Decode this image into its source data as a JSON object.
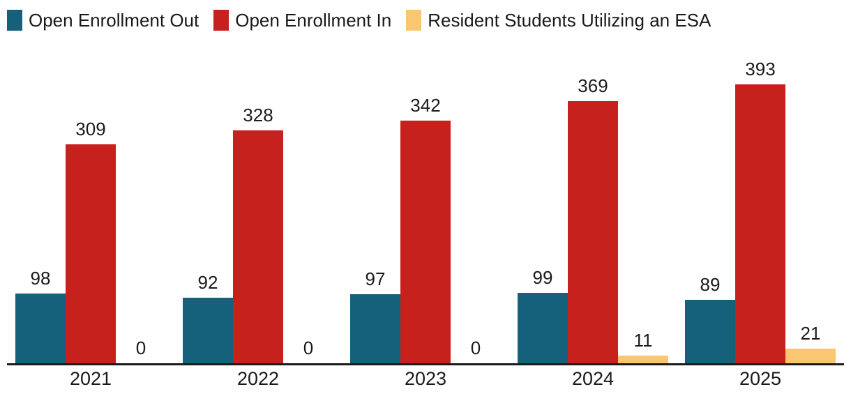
{
  "chart_data": {
    "type": "bar",
    "title": "",
    "categories": [
      "2021",
      "2022",
      "2023",
      "2024",
      "2025"
    ],
    "series": [
      {
        "name": "Open Enrollment Out",
        "color": "#15607B",
        "values": [
          98,
          92,
          97,
          99,
          89
        ]
      },
      {
        "name": "Open Enrollment In",
        "color": "#C7211E",
        "values": [
          309,
          328,
          342,
          369,
          393
        ]
      },
      {
        "name": "Resident Students Utilizing an ESA",
        "color": "#FBC672",
        "values": [
          0,
          0,
          0,
          11,
          21
        ]
      }
    ],
    "xlabel": "",
    "ylabel": "",
    "ylim": [
      0,
      453
    ],
    "grid": false,
    "y_axis_visible": false,
    "value_labels": true,
    "legend_position": "top-left",
    "axis_line_color": "#1a1a1a",
    "text_color": "#1a1a1a",
    "background_color": "#ffffff"
  }
}
